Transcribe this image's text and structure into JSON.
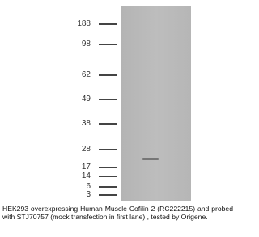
{
  "markers": [
    "188",
    "98",
    "62",
    "49",
    "38",
    "28",
    "17",
    "14",
    "6",
    "3"
  ],
  "caption": "HEK293 overexpressing Human Muscle Cofilin 2 (RC222215) and probed with STJ70757 (mock transfection in first lane) , tested by Origene."
}
